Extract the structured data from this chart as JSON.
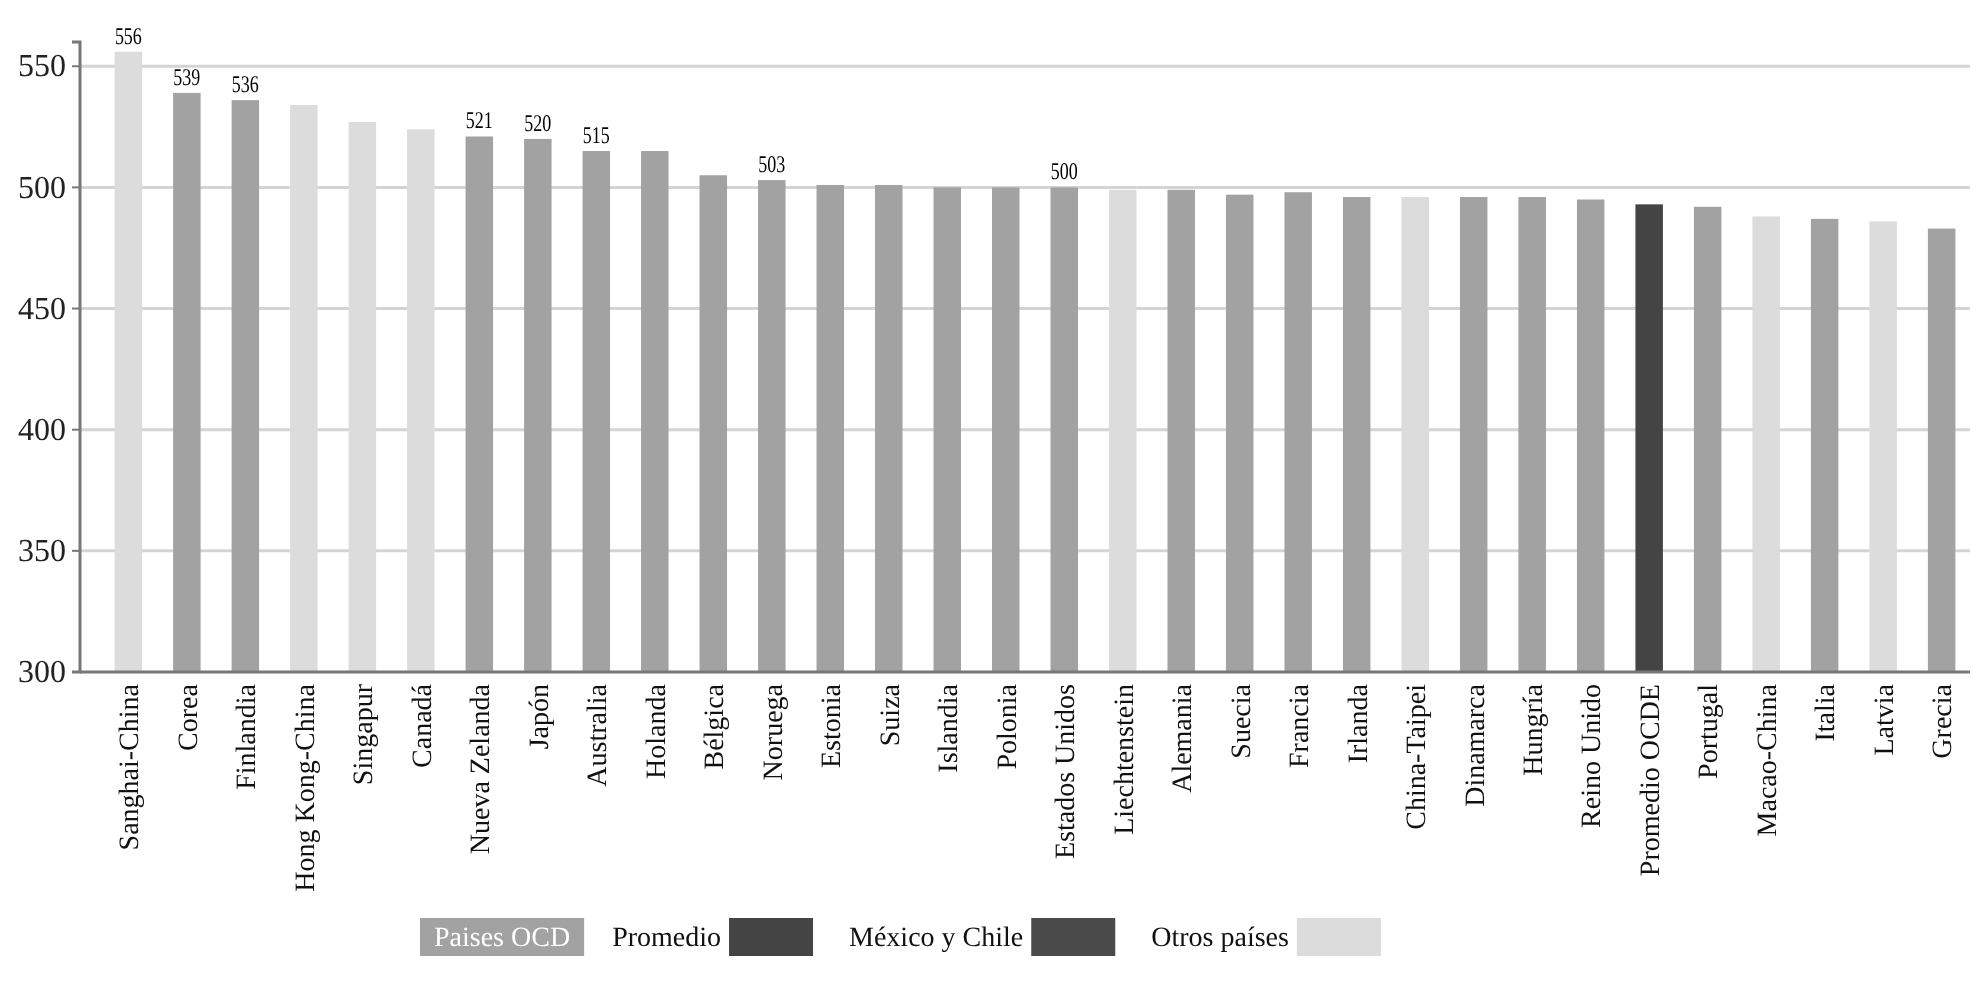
{
  "chart_data": {
    "type": "bar",
    "categories": [
      "Sanghai-China",
      "Corea",
      "Finlandia",
      "Hong Kong-China",
      "Singapur",
      "Canadá",
      "Nueva Zelanda",
      "Japón",
      "Australia",
      "Holanda",
      "Bélgica",
      "Noruega",
      "Estonia",
      "Suiza",
      "Islandia",
      "Polonia",
      "Estados Unidos",
      "Liechtenstein",
      "Alemania",
      "Suecia",
      "Francia",
      "Irlanda",
      "China-Taipei",
      "Dinamarca",
      "Hungría",
      "Reino Unido",
      "Promedio OCDE",
      "Portugal",
      "Macao-China",
      "Italia",
      "Latvia",
      "Grecia"
    ],
    "series": [
      {
        "name": "Paises OCD",
        "color": "#a2a2a2",
        "values": [
          null,
          539,
          536,
          null,
          null,
          null,
          521,
          520,
          515,
          515,
          505,
          503,
          501,
          501,
          500,
          500,
          500,
          null,
          499,
          497,
          498,
          496,
          null,
          496,
          496,
          495,
          null,
          492,
          null,
          487,
          null,
          483
        ],
        "value_labels": [
          null,
          "539",
          "536",
          null,
          null,
          null,
          "521",
          "520",
          "515",
          null,
          null,
          "503",
          null,
          null,
          null,
          null,
          "500",
          null,
          null,
          null,
          null,
          null,
          null,
          null,
          null,
          null,
          null,
          null,
          null,
          null,
          null,
          null
        ]
      },
      {
        "name": "Promedio",
        "color": "#444444",
        "values": [
          null,
          null,
          null,
          null,
          null,
          null,
          null,
          null,
          null,
          null,
          null,
          null,
          null,
          null,
          null,
          null,
          null,
          null,
          null,
          null,
          null,
          null,
          null,
          null,
          null,
          null,
          493,
          null,
          null,
          null,
          null,
          null
        ]
      },
      {
        "name": "México y Chile",
        "color": "#4a4a4a",
        "values": [
          null,
          null,
          null,
          null,
          null,
          null,
          null,
          null,
          null,
          null,
          null,
          null,
          null,
          null,
          null,
          null,
          null,
          null,
          null,
          null,
          null,
          null,
          null,
          null,
          null,
          null,
          null,
          null,
          null,
          null,
          null,
          null
        ]
      },
      {
        "name": "Otros países",
        "color": "#dcdcdc",
        "values": [
          556,
          null,
          null,
          534,
          527,
          524,
          null,
          null,
          null,
          null,
          null,
          null,
          null,
          null,
          null,
          null,
          null,
          499,
          null,
          null,
          null,
          null,
          496,
          null,
          null,
          null,
          null,
          null,
          488,
          null,
          486,
          null
        ],
        "value_labels": [
          "556",
          null,
          null,
          null,
          null,
          null,
          null,
          null,
          null,
          null,
          null,
          null,
          null,
          null,
          null,
          null,
          null,
          null,
          null,
          null,
          null,
          null,
          null,
          null,
          null,
          null,
          null,
          null,
          null,
          null,
          null,
          null
        ]
      }
    ],
    "ylim": [
      300,
      560
    ],
    "yticks": [
      300,
      350,
      400,
      450,
      500,
      550
    ],
    "grid": "y",
    "legend": "bottom"
  }
}
